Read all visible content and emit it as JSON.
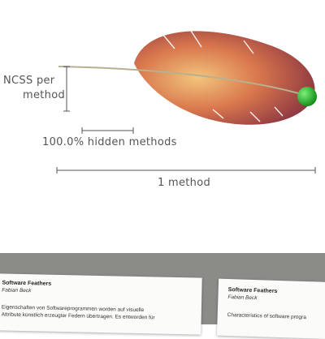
{
  "visualization": {
    "metric_label_line1": "NCSS per",
    "metric_label_line2": "method",
    "hidden_label": "100.0% hidden methods",
    "scale_label": "1 method",
    "colors": {
      "vane_dark": "#7d2a3f",
      "vane_mid": "#c2504a",
      "vane_light": "#f0c27a",
      "shaft": "#b8b090",
      "ball": "#1db522",
      "axis": "#555555"
    }
  },
  "photo": {
    "card_left": {
      "title": "Software Feathers",
      "author": "Fabian Beck",
      "body_line1": "Eigenschaften von Softwareprogrammen worden auf visuelle",
      "body_line2": "Attribute künstlich erzeugter Federn übertragen. Es entworden für"
    },
    "card_right": {
      "title": "Software Feathers",
      "author": "Fabian Beck",
      "body_line1": "Characteristics of software progra"
    }
  }
}
